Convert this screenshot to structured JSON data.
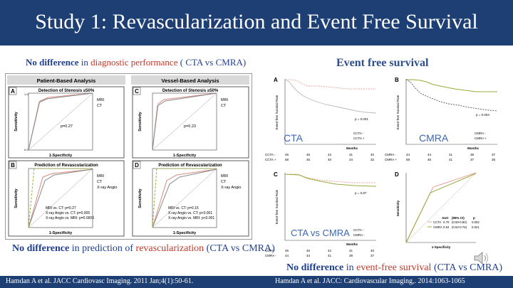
{
  "title": "Study 1: Revascularization and Event Free Survival",
  "left_caption": {
    "part1": "No difference",
    "part2": " in ",
    "part3": "diagnostic performance",
    "part4": " ( CTA vs CMRA)"
  },
  "bottom_caption": {
    "part1": "No difference",
    "part2": " in prediction of ",
    "part3": "revascularization",
    "part4": " (CTA vs CMRA)"
  },
  "right_title": "Event free survival",
  "right_caption": {
    "part1": "No difference",
    "part2": " in ",
    "part3": "event-free survival",
    "part4": " (CTA vs CMRA)"
  },
  "footnote_left": "Hamdan A et al.  JACC Cardiovasc Imaging. 2011 Jan;4(1):50-61.",
  "footnote_right": "Hamdan A et al. JACC: Cardiovascular Imaging,. 2014:1063-1065",
  "roc": {
    "col1": "Patient-Based Analysis",
    "col2": "Vessel-Based Analysis",
    "A": {
      "letter": "A",
      "title": "Detection of Stenosis ≥50%",
      "p": "p=0.27",
      "legend": [
        "MRI",
        "CT"
      ]
    },
    "C": {
      "letter": "C",
      "title": "Detection of Stenosis ≥50%",
      "p": "p=0.23",
      "legend": [
        "MRI",
        "CT"
      ]
    },
    "B": {
      "letter": "B",
      "title": "Prediction of Revascularization",
      "legend": [
        "MRI",
        "CT",
        "X-ray Angio"
      ],
      "stats": [
        "MRI vs. CT: p=0.27",
        "X-ray Angio vs. CT: p=0.005",
        "X-ray Angio vs. MRI: p=0.0003"
      ]
    },
    "D": {
      "letter": "D",
      "title": "Prediction of Revascularization",
      "legend": [
        "MRI",
        "CT",
        "X-ray Angio"
      ],
      "stats": [
        "MRI vs. CT: p=0.15",
        "X-ray Angio vs. CT: p<0.001",
        "X-ray Angio vs. MRI: p<0.001"
      ]
    },
    "xlabel": "1-Specificity",
    "ylabel": "Sensitivity",
    "ticks": [
      "0.0",
      "0.2",
      "0.4",
      "0.6",
      "0.8",
      "1.0"
    ]
  },
  "km": {
    "A": {
      "letter": "A",
      "label": "CTA",
      "p": "p = 0.001",
      "legend": [
        "CCTA -",
        "CCTA +"
      ],
      "risk_rows": [
        [
          "CCTA -",
          "45",
          "45",
          "42",
          "41",
          "40"
        ],
        [
          "CCTA +",
          "58",
          "45",
          "40",
          "34",
          "32"
        ]
      ]
    },
    "B": {
      "letter": "B",
      "label": "CMRA",
      "p": "p = 0.004",
      "legend": [
        "CMRA -",
        "CMRA +"
      ],
      "risk_rows": [
        [
          "CMRA -",
          "44",
          "44",
          "41",
          "39",
          "37"
        ],
        [
          "CMRA +",
          "58",
          "45",
          "41",
          "37",
          "35"
        ]
      ]
    },
    "C": {
      "letter": "C",
      "label": "CTA vs CMRA",
      "p": "p = 0.87",
      "legend": [
        "CCTA -",
        "CMRA -"
      ],
      "risk_rows": [
        [
          "CCTA -",
          "45",
          "45",
          "42",
          "41",
          "40"
        ],
        [
          "CMRA -",
          "44",
          "44",
          "41",
          "39",
          "37"
        ]
      ]
    },
    "D": {
      "letter": "D",
      "auc_header": [
        "AUC",
        "(95% CI)",
        "p"
      ],
      "auc_rows": [
        [
          "CCTA",
          "0.70",
          "(0.59-0.80)",
          "0.002"
        ],
        [
          "CMRA",
          "0.64",
          "(0.53-0.76)",
          "0.021"
        ]
      ],
      "xlabel": "1-Specificity",
      "ylabel": "Sensitivity"
    },
    "months": "Months",
    "yaxis": "Event-free Survival Rate",
    "mticks": [
      "0",
      "12",
      "24",
      "36",
      "48"
    ],
    "ypct": [
      "0.0",
      "0.2",
      "0.4",
      "0.6",
      "0.8",
      "1.0"
    ]
  },
  "colors": {
    "title_bg": "#1e3f73",
    "blue": "#1f3f8f",
    "red": "#c0392b",
    "cta": "#e8a29a",
    "cmra": "#9aa838"
  }
}
